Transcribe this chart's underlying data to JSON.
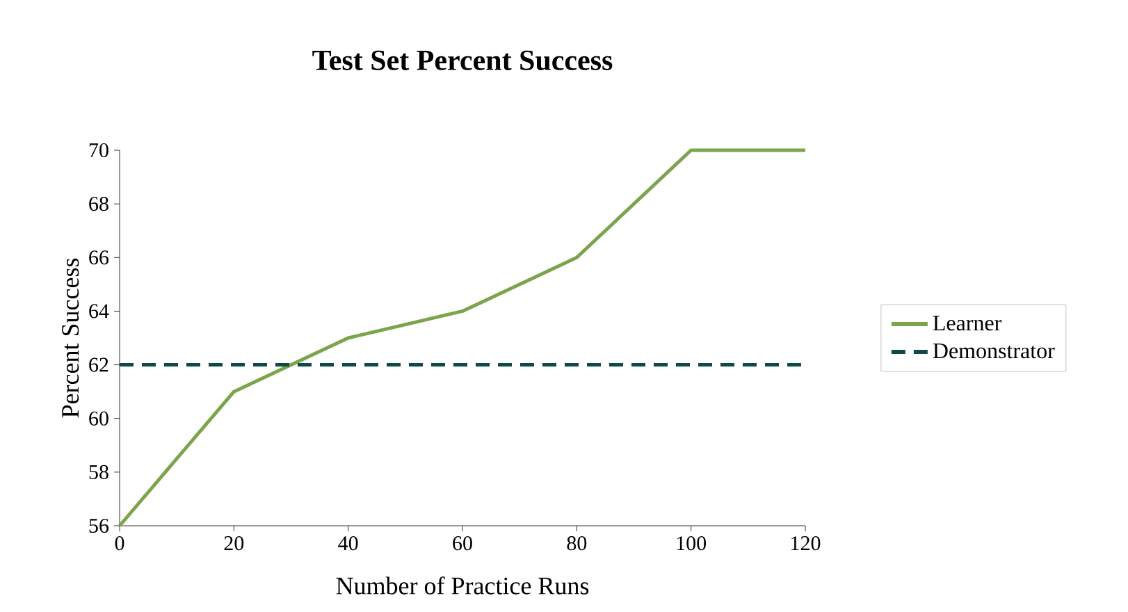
{
  "chart_data": {
    "type": "line",
    "title": "Test Set Percent Success",
    "xlabel": "Number of Practice Runs",
    "ylabel": "Percent Success",
    "series": [
      {
        "name": "Learner",
        "color": "#7ba44c",
        "x": [
          0,
          20,
          40,
          60,
          80,
          100,
          120
        ],
        "values": [
          56,
          61,
          63,
          64,
          66,
          70,
          70
        ],
        "line_style": "solid"
      },
      {
        "name": "Demonstrator",
        "color": "#0e4a4a",
        "x": [
          0,
          120
        ],
        "values": [
          62,
          62
        ],
        "line_style": "dashed"
      }
    ],
    "xlim": [
      0,
      120
    ],
    "ylim": [
      56,
      70
    ],
    "xticks": [
      0,
      20,
      40,
      60,
      80,
      100,
      120
    ],
    "yticks": [
      56,
      58,
      60,
      62,
      64,
      66,
      68,
      70
    ],
    "legend": "right"
  }
}
